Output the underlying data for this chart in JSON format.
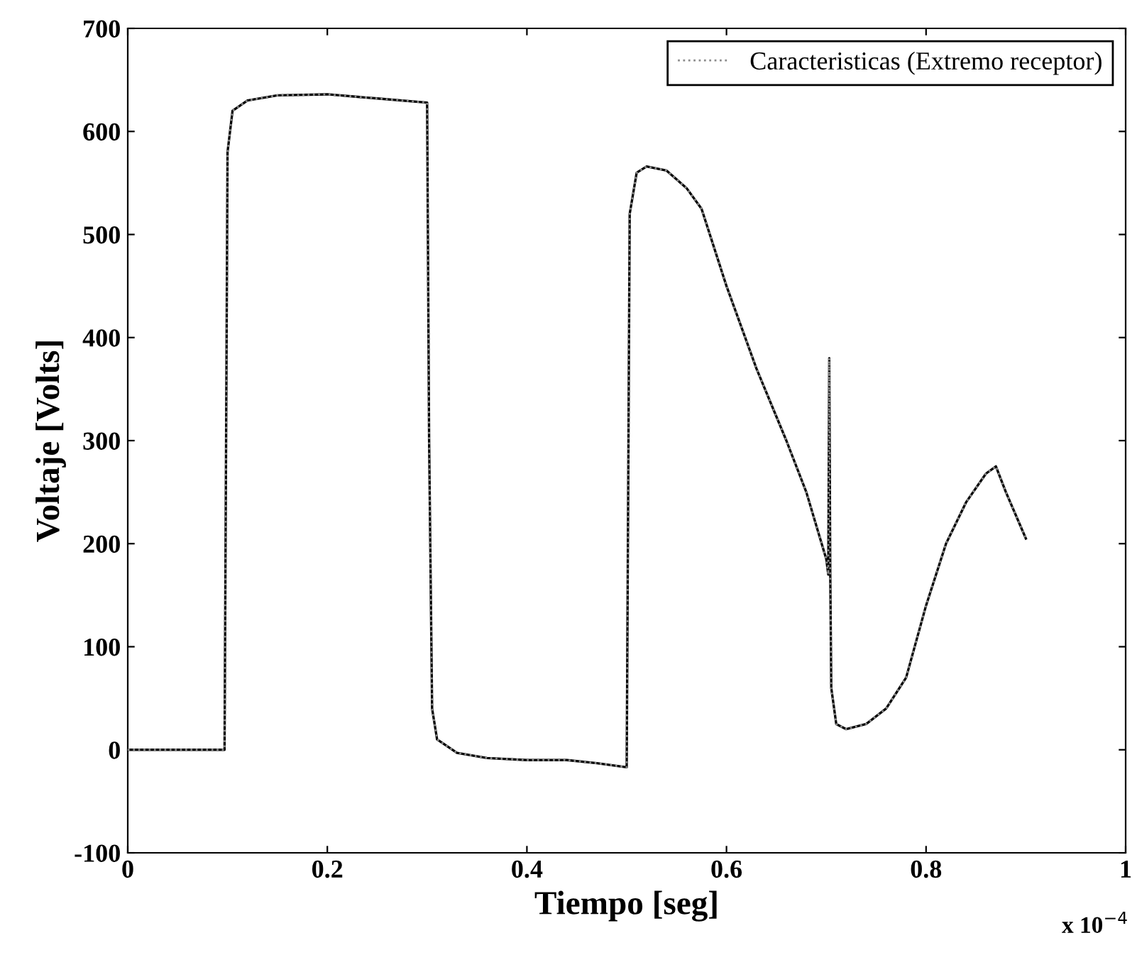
{
  "chart_data": {
    "type": "line",
    "xlabel": "Tiempo [seg]",
    "ylabel": "Voltaje [Volts]",
    "x": [
      0,
      0.097,
      0.1,
      0.105,
      0.12,
      0.15,
      0.2,
      0.25,
      0.3,
      0.302,
      0.305,
      0.31,
      0.33,
      0.36,
      0.4,
      0.44,
      0.47,
      0.5,
      0.503,
      0.51,
      0.52,
      0.54,
      0.56,
      0.575,
      0.6,
      0.63,
      0.66,
      0.68,
      0.7,
      0.702,
      0.703,
      0.704,
      0.705,
      0.71,
      0.72,
      0.74,
      0.76,
      0.78,
      0.8,
      0.82,
      0.84,
      0.86,
      0.87,
      0.88,
      0.9
    ],
    "series": [
      {
        "name": "Caracteristicas (Extremo receptor)",
        "color": "#8c8c8c",
        "line_style": "dotted",
        "values": [
          0,
          0,
          580,
          620,
          630,
          635,
          636,
          632,
          628,
          300,
          40,
          10,
          -3,
          -8,
          -10,
          -10,
          -13,
          -17,
          520,
          560,
          566,
          562,
          545,
          525,
          450,
          370,
          300,
          250,
          185,
          170,
          380,
          170,
          60,
          25,
          20,
          25,
          40,
          70,
          140,
          200,
          240,
          268,
          275,
          250,
          205
        ]
      },
      {
        "color": "#000000",
        "line_style": "solid",
        "values": [
          0,
          0,
          580,
          620,
          630,
          635,
          636,
          632,
          628,
          300,
          40,
          10,
          -3,
          -8,
          -10,
          -10,
          -13,
          -17,
          520,
          560,
          566,
          562,
          545,
          525,
          450,
          370,
          300,
          250,
          185,
          170,
          380,
          170,
          60,
          25,
          20,
          25,
          40,
          70,
          140,
          200,
          240,
          268,
          275,
          250,
          205
        ]
      }
    ],
    "xlim": [
      0,
      1
    ],
    "xticks": [
      0,
      0.2,
      0.4,
      0.6,
      0.8,
      1
    ],
    "ylim": [
      -100,
      700
    ],
    "yticks": [
      -100,
      0,
      100,
      200,
      300,
      400,
      500,
      600,
      700
    ],
    "annotations": [
      "x 10$^{−4}$"
    ],
    "grid": false,
    "legend": "top right"
  }
}
